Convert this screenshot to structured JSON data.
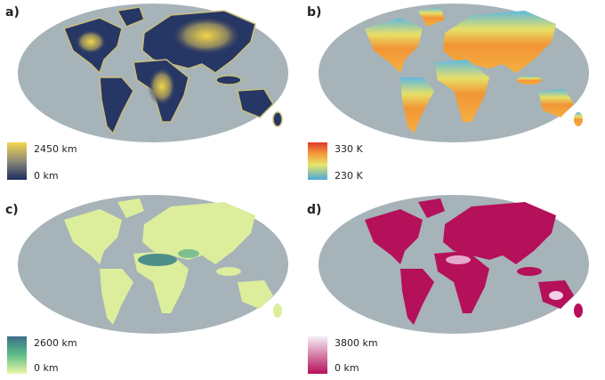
{
  "panels": [
    {
      "label": "a)",
      "legend": {
        "max": "2450 km",
        "min": "0 km"
      }
    },
    {
      "label": "b)",
      "legend": {
        "max": "330 K",
        "min": "230 K"
      }
    },
    {
      "label": "c)",
      "legend": {
        "max": "2600 km",
        "min": "0 km"
      }
    },
    {
      "label": "d)",
      "legend": {
        "max": "3800 km",
        "min": "0 km"
      }
    }
  ]
}
